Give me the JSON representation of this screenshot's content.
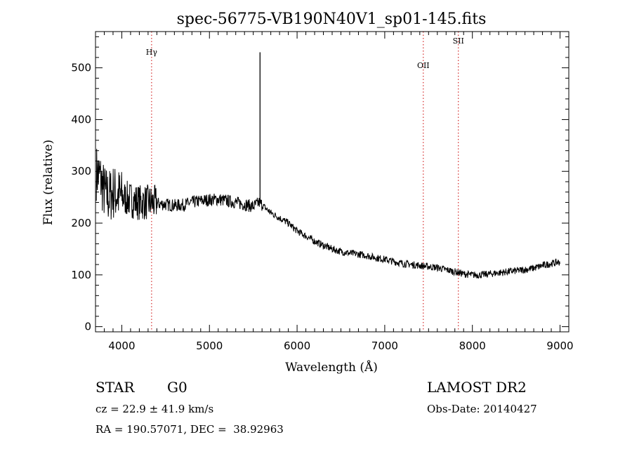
{
  "chart_data": {
    "type": "line",
    "title": "spec-56775-VB190N40V1_sp01-145.fits",
    "xlabel": "Wavelength (Å)",
    "ylabel": "Flux (relative)",
    "xlim": [
      3700,
      9100
    ],
    "ylim": [
      -10,
      570
    ],
    "xticks": [
      4000,
      5000,
      6000,
      7000,
      8000,
      9000
    ],
    "yticks": [
      0,
      100,
      200,
      300,
      400,
      500
    ],
    "line_color": "#000000",
    "marker_color": "#cc0000",
    "spectral_lines": [
      {
        "label": "Hγ",
        "x": 4340
      },
      {
        "label": "OII",
        "x": 7440
      },
      {
        "label": "SII",
        "x": 7840
      }
    ],
    "series": [
      {
        "name": "flux",
        "x": [
          3700,
          3750,
          3800,
          3850,
          3900,
          3950,
          4000,
          4100,
          4200,
          4300,
          4400,
          4500,
          4600,
          4700,
          4800,
          4900,
          5000,
          5100,
          5200,
          5300,
          5400,
          5500,
          5570,
          5600,
          5700,
          5800,
          5900,
          6000,
          6100,
          6200,
          6300,
          6400,
          6500,
          6600,
          6700,
          6800,
          6900,
          7000,
          7100,
          7200,
          7300,
          7400,
          7500,
          7600,
          7700,
          7800,
          7900,
          8000,
          8100,
          8200,
          8300,
          8400,
          8500,
          8600,
          8700,
          8800,
          8900,
          9000
        ],
        "y": [
          300,
          290,
          260,
          250,
          260,
          255,
          250,
          245,
          240,
          240,
          238,
          236,
          234,
          235,
          240,
          243,
          245,
          246,
          243,
          240,
          236,
          232,
          240,
          235,
          220,
          210,
          200,
          185,
          175,
          165,
          157,
          150,
          145,
          142,
          140,
          137,
          133,
          130,
          126,
          122,
          120,
          118,
          116,
          114,
          110,
          106,
          102,
          100,
          100,
          102,
          104,
          106,
          108,
          110,
          113,
          118,
          122,
          125
        ]
      }
    ],
    "spike": {
      "x": 5577,
      "y": 530
    }
  },
  "info": {
    "object_class": "STAR",
    "subclass": "G0",
    "survey": "LAMOST DR2",
    "cz_text": "cz = 22.9 ± 41.9 km/s",
    "obs_date": "Obs-Date: 20140427",
    "radec_text": "RA = 190.57071, DEC =  38.92963"
  }
}
